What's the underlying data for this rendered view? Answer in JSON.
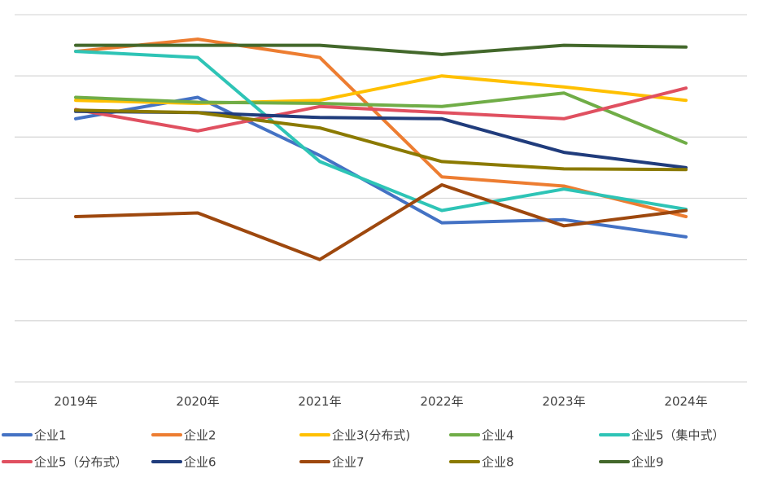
{
  "chart_data": {
    "type": "line",
    "categories": [
      "2019年",
      "2020年",
      "2021年",
      "2022年",
      "2023年",
      "2024年"
    ],
    "ylim": [
      0,
      6
    ],
    "grid": true,
    "legend_position": "bottom",
    "series": [
      {
        "name": "企业1",
        "color": "#4472C4",
        "values": [
          4.3,
          4.65,
          3.7,
          2.6,
          2.65,
          2.37
        ]
      },
      {
        "name": "企业2",
        "color": "#ED7D31",
        "values": [
          5.4,
          5.6,
          5.3,
          3.35,
          3.2,
          2.7
        ]
      },
      {
        "name": "企业3(分布式)",
        "color": "#FFC000",
        "values": [
          4.6,
          4.55,
          4.6,
          5.0,
          4.82,
          4.6
        ]
      },
      {
        "name": "企业4",
        "color": "#70AD47",
        "values": [
          4.65,
          4.57,
          4.55,
          4.5,
          4.72,
          3.9
        ]
      },
      {
        "name": "企业5（集中式）",
        "color": "#2EC4B6",
        "values": [
          5.4,
          5.3,
          3.6,
          2.8,
          3.15,
          2.82
        ]
      },
      {
        "name": "企业5（分布式）",
        "color": "#E05060",
        "values": [
          4.45,
          4.1,
          4.5,
          4.4,
          4.3,
          4.8
        ]
      },
      {
        "name": "企业6",
        "color": "#203C7C",
        "values": [
          4.42,
          4.4,
          4.32,
          4.3,
          3.75,
          3.5
        ]
      },
      {
        "name": "企业7",
        "color": "#9E480E",
        "values": [
          2.7,
          2.76,
          2.0,
          3.22,
          2.55,
          2.8
        ]
      },
      {
        "name": "企业8",
        "color": "#8B7A00",
        "values": [
          4.44,
          4.4,
          4.15,
          3.6,
          3.48,
          3.47
        ]
      },
      {
        "name": "企业9",
        "color": "#43682B",
        "values": [
          5.5,
          5.5,
          5.5,
          5.35,
          5.5,
          5.47
        ]
      }
    ]
  }
}
